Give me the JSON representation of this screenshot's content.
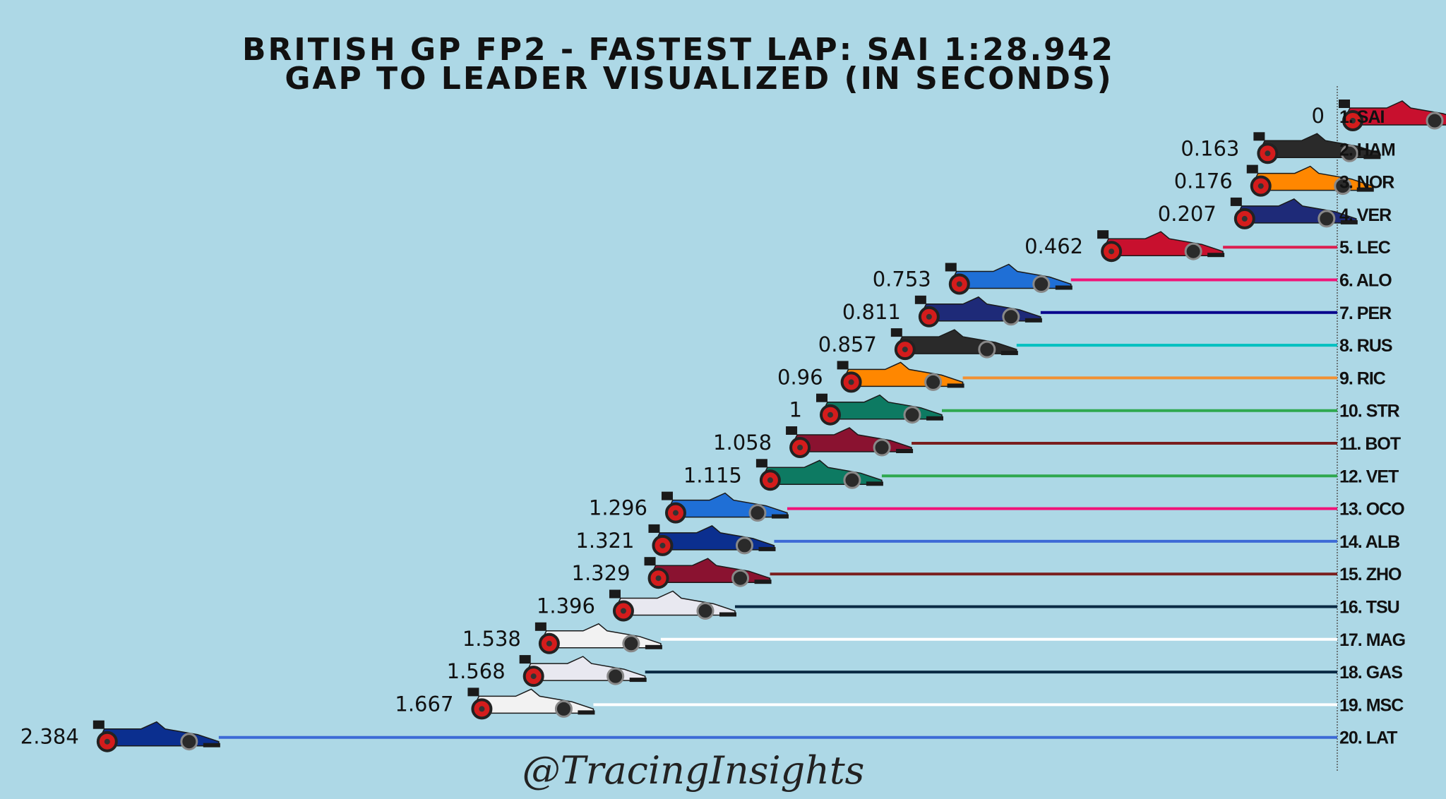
{
  "chart_data": {
    "type": "bar",
    "title": "BRITISH GP FP2 - FASTEST LAP: SAI 1:28.942",
    "subtitle": "GAP TO LEADER VISUALIZED (IN SECONDS)",
    "watermark": "@TracingInsights",
    "categories": [
      "1. SAI",
      "2. HAM",
      "3. NOR",
      "4. VER",
      "5. LEC",
      "6. ALO",
      "7. PER",
      "8. RUS",
      "9. RIC",
      "10. STR",
      "11. BOT",
      "12. VET",
      "13. OCO",
      "14. ALB",
      "15. ZHO",
      "16. TSU",
      "17. MAG",
      "18. GAS",
      "19. MSC",
      "20. LAT"
    ],
    "values": [
      0,
      0.163,
      0.176,
      0.207,
      0.462,
      0.753,
      0.811,
      0.857,
      0.96,
      1,
      1.058,
      1.115,
      1.296,
      1.321,
      1.329,
      1.396,
      1.538,
      1.568,
      1.667,
      2.384
    ],
    "value_labels": [
      "0",
      "0.163",
      "0.176",
      "0.207",
      "0.462",
      "0.753",
      "0.811",
      "0.857",
      "0.96",
      "1",
      "1.058",
      "1.115",
      "1.296",
      "1.321",
      "1.329",
      "1.396",
      "1.538",
      "1.568",
      "1.667",
      "2.384"
    ],
    "line_colors": [
      "#d40000",
      "#00c0c0",
      "#f29133",
      "#06008c",
      "#dc1e50",
      "#f01478",
      "#06008c",
      "#00c0c0",
      "#f29133",
      "#2fa84f",
      "#7a1e1e",
      "#2fa84f",
      "#f01478",
      "#3d6ad6",
      "#7a1e1e",
      "#0a2a44",
      "#ffffff",
      "#0a2a44",
      "#ffffff",
      "#3d6ad6"
    ],
    "car_body_colors": [
      "#c8102e",
      "#2a2a2a",
      "#ff8700",
      "#1e2a78",
      "#c8102e",
      "#1f6fd6",
      "#1e2a78",
      "#2a2a2a",
      "#ff8700",
      "#0d7a62",
      "#8a1230",
      "#0d7a62",
      "#1f6fd6",
      "#0b2f8f",
      "#8a1230",
      "#e8e8f0",
      "#f2f2f2",
      "#e8e8f0",
      "#f2f2f2",
      "#0b2f8f"
    ],
    "xlim": [
      2.7,
      0
    ],
    "grid": false,
    "legend": "none"
  }
}
